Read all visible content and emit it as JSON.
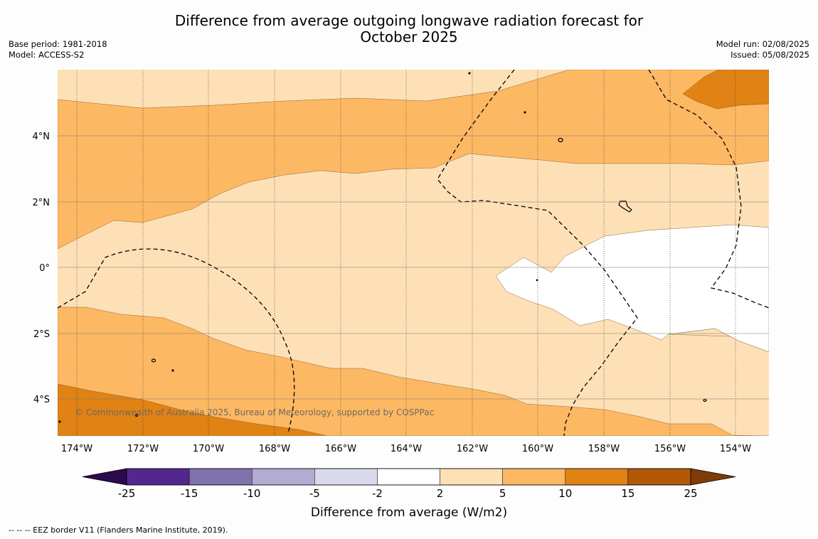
{
  "title_line1": "Difference from average outgoing longwave radiation forecast for",
  "title_line2": "October 2025",
  "base_period": "Base period: 1981-2018",
  "model": "Model: ACCESS-S2",
  "model_run": "Model run: 02/08/2025",
  "issued": "Issued: 05/08/2025",
  "lon_labels": [
    "174°W",
    "172°W",
    "170°W",
    "168°W",
    "166°W",
    "164°W",
    "162°W",
    "160°W",
    "158°W",
    "156°W",
    "154°W"
  ],
  "lat_labels": [
    "4°N",
    "2°N",
    "0°",
    "2°S",
    "4°S"
  ],
  "credit": "© Commonwealth of Australia 2025, Bureau of Meteorology, supported by COSPPac",
  "colorbar": {
    "ticks": [
      "-25",
      "-15",
      "-10",
      "-5",
      "-2",
      "2",
      "5",
      "10",
      "15",
      "25"
    ],
    "colors": {
      "below_-25": "#2d0a4e",
      "-25_-15": "#54278f",
      "-15_-10": "#8073ac",
      "-10_-5": "#b2abd2",
      "-5_-2": "#d8daeb",
      "-2_2": "#ffffff",
      "2_5": "#fee0b6",
      "5_10": "#fdb863",
      "10_15": "#e08214",
      "15_25": "#b35806",
      "above_25": "#7f3b08"
    },
    "title": "Difference from average (W/m2)"
  },
  "footnote": "--  --  -- EEZ border V11 (Flanders Marine Institute, 2019)."
}
